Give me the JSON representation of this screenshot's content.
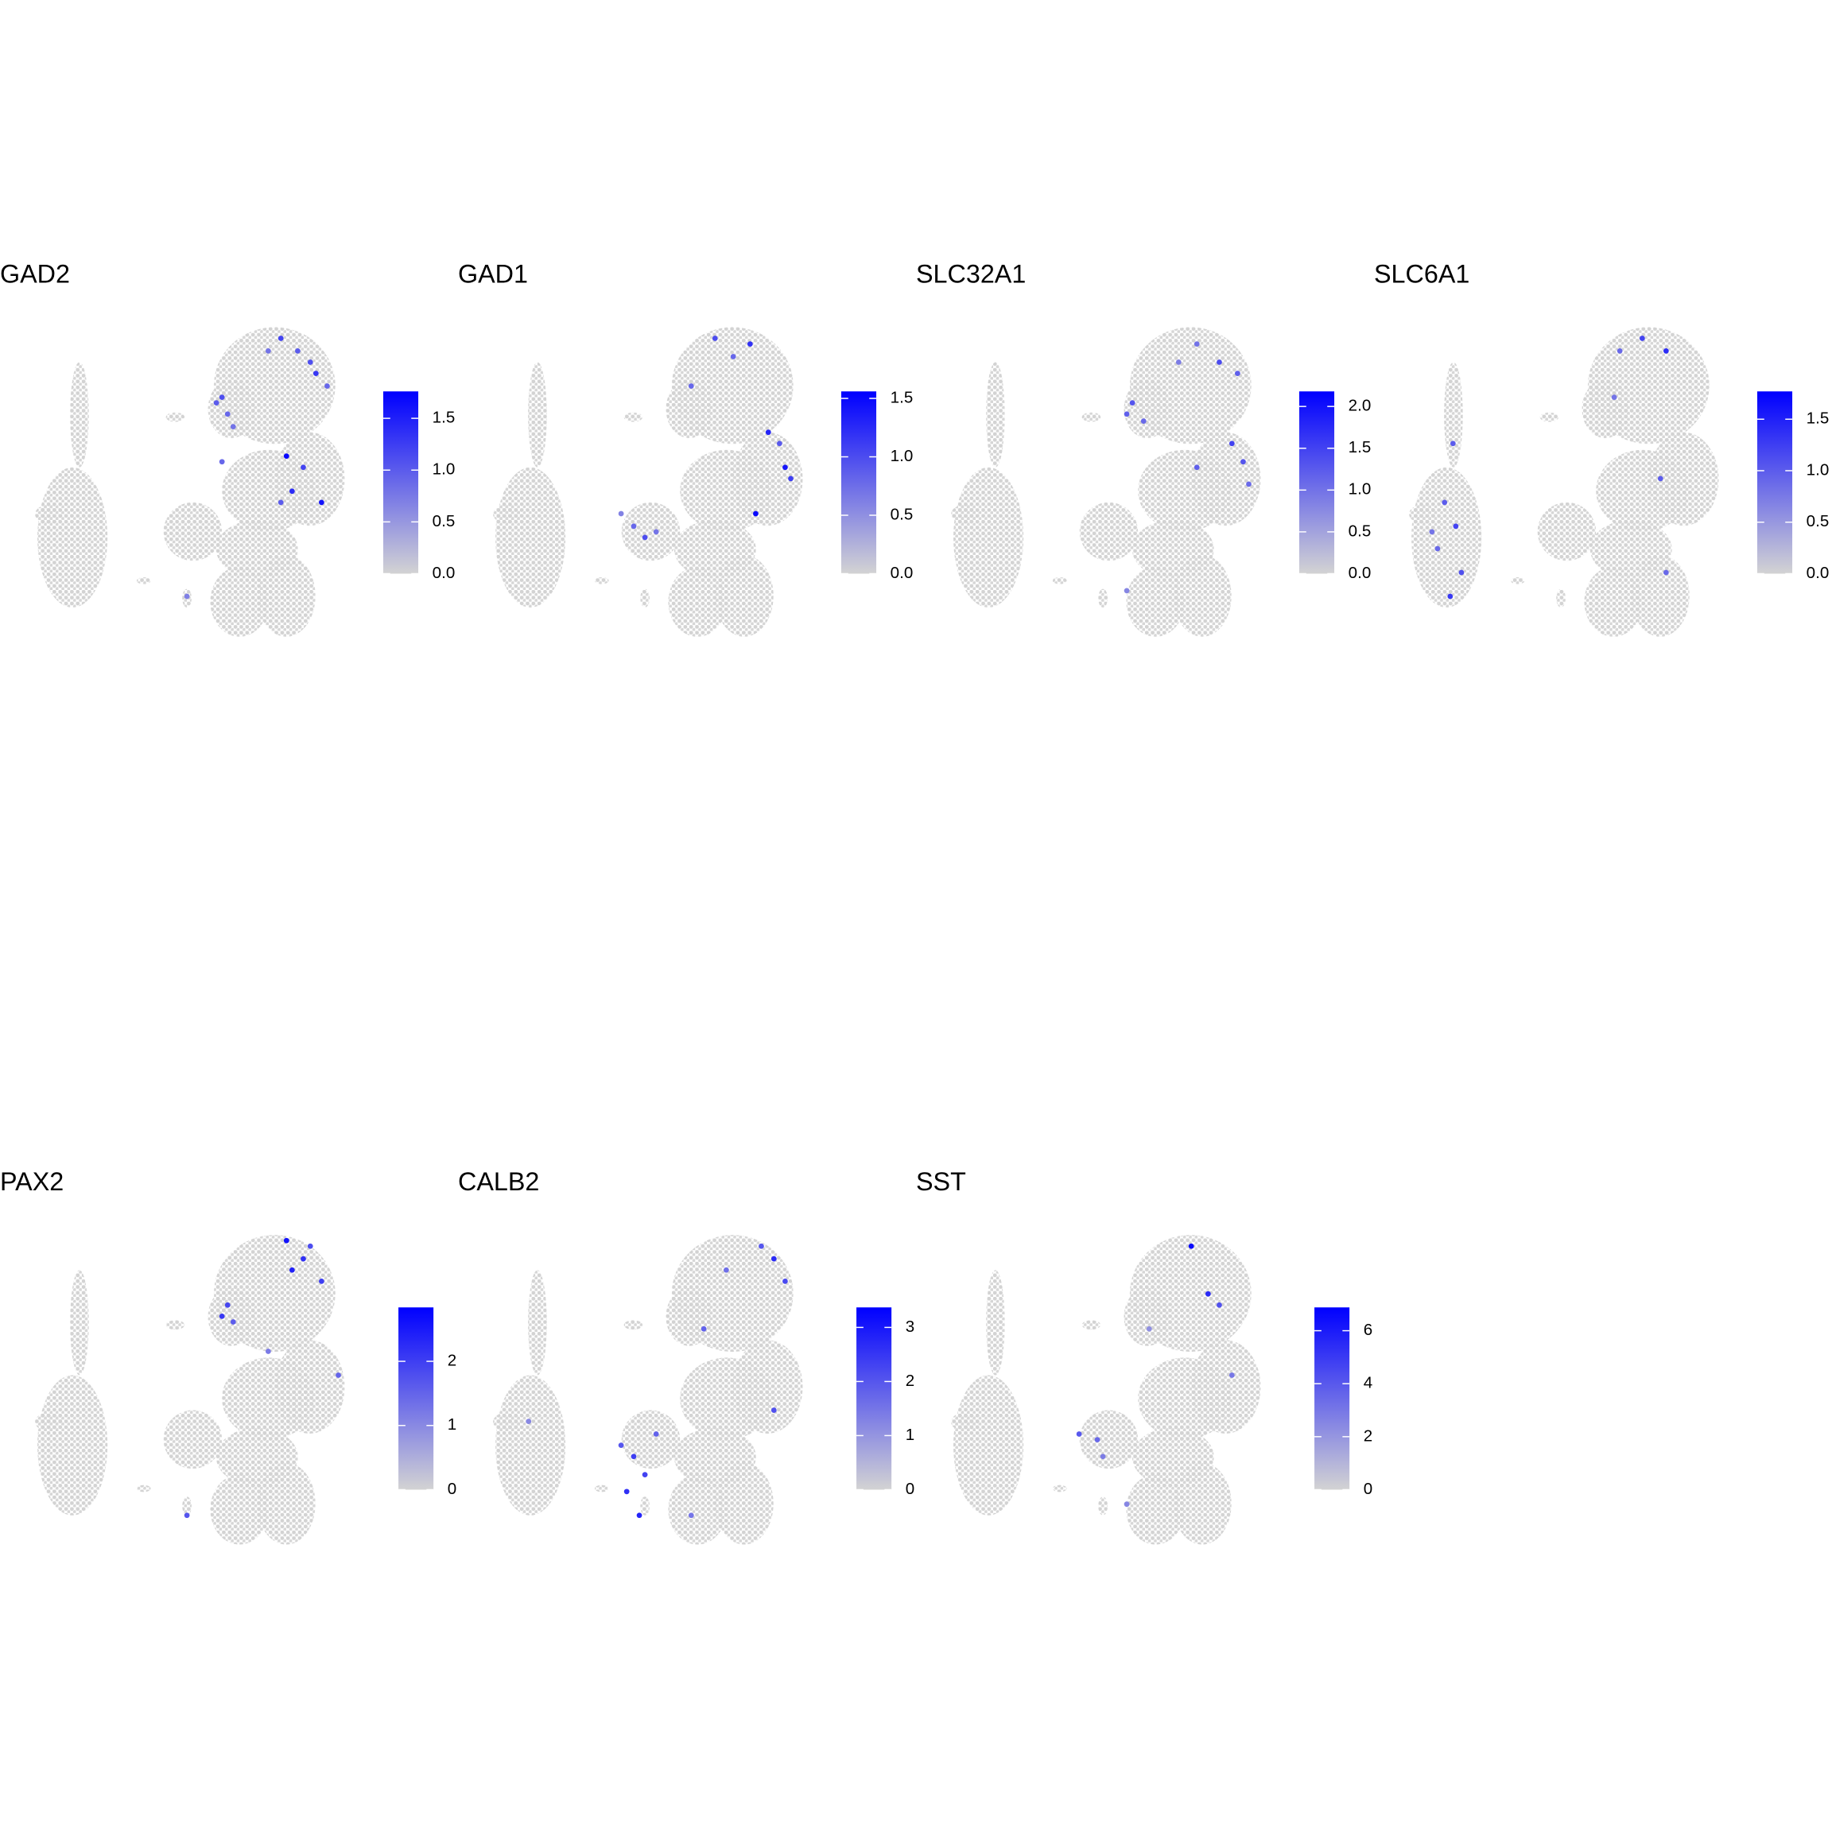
{
  "chart_data": [
    {
      "type": "scatter",
      "title": "GAD2",
      "x": [
        2.5,
        2.9,
        2.1,
        3.3,
        6.7,
        7.9,
        9.2,
        10,
        8.8,
        5.8,
        7.1,
        8.3,
        7.5,
        9.6,
        6.7,
        0,
        2.5
      ],
      "y": [
        6.0,
        4.8,
        5.6,
        3.9,
        10.2,
        9.3,
        7.7,
        6.8,
        8.5,
        9.3,
        1.8,
        1.0,
        -0.7,
        -1.5,
        -1.5,
        -8.2,
        1.4
      ],
      "values": [
        1.1,
        0.9,
        1.0,
        0.8,
        1.2,
        1.0,
        1.3,
        0.9,
        1.1,
        0.8,
        1.7,
        1.2,
        1.4,
        1.6,
        1.0,
        0.7,
        0.9
      ],
      "xlim": [
        -12,
        12
      ],
      "ylim": [
        -12,
        12
      ],
      "clim": [
        0,
        1.76
      ],
      "cticks": [
        {
          "value": 0,
          "label": "0.0"
        },
        0.5,
        {
          "value": 1,
          "label": "1.0"
        },
        1.5
      ],
      "low_color": "#d3d3d3",
      "high_color": "#0000ff"
    },
    {
      "type": "scatter",
      "title": "GAD1",
      "x": [
        5,
        7.5,
        6.3,
        10,
        10.4,
        9.6,
        -0.8,
        0,
        0.8,
        8.8,
        7.9,
        3.3,
        -1.7
      ],
      "y": [
        10.2,
        9.8,
        8.9,
        1,
        0.2,
        2.7,
        -3.2,
        -4,
        -3.6,
        3.5,
        -2.3,
        6.8,
        -2.3
      ],
      "values": [
        1.0,
        1.2,
        0.8,
        1.4,
        1.1,
        0.9,
        0.8,
        1.0,
        0.7,
        1.3,
        1.5,
        0.8,
        0.6
      ],
      "xlim": [
        -12,
        12
      ],
      "ylim": [
        -12,
        12
      ],
      "clim": [
        0,
        1.56
      ],
      "cticks": [
        {
          "value": 0,
          "label": "0.0"
        },
        0.5,
        {
          "value": 1,
          "label": "1.0"
        },
        1.5
      ],
      "low_color": "#d3d3d3",
      "high_color": "#0000ff"
    },
    {
      "type": "scatter",
      "title": "SLC32A1",
      "x": [
        2.1,
        2.9,
        1.7,
        8.3,
        9.6,
        6.7,
        5.4,
        9.2,
        10,
        10.4,
        6.7,
        1.7
      ],
      "y": [
        5.6,
        4.3,
        4.8,
        8.5,
        7.7,
        9.8,
        8.5,
        2.7,
        1.4,
        -0.2,
        1,
        -7.8
      ],
      "values": [
        1.3,
        1.1,
        1.2,
        1.4,
        1.2,
        1.0,
        0.9,
        1.5,
        1.3,
        1.1,
        1.2,
        0.8
      ],
      "xlim": [
        -12,
        12
      ],
      "ylim": [
        -12,
        12
      ],
      "clim": [
        0,
        2.18
      ],
      "cticks": [
        {
          "value": 0,
          "label": "0.0"
        },
        0.5,
        {
          "value": 1,
          "label": "1.0"
        },
        1.5,
        {
          "value": 2,
          "label": "2.0"
        }
      ],
      "low_color": "#d3d3d3",
      "high_color": "#0000ff"
    },
    {
      "type": "scatter",
      "title": "SLC6A1",
      "x": [
        -8.3,
        -7.5,
        -8.8,
        -7.1,
        -7.9,
        -9.2,
        -7.7,
        5.8,
        7.5,
        4.2,
        3.8,
        7.1,
        7.5
      ],
      "y": [
        -1.5,
        -3.2,
        -4.8,
        -6.5,
        -8.2,
        -3.6,
        2.7,
        10.2,
        9.3,
        9.3,
        6,
        0.2,
        -6.5
      ],
      "values": [
        1.0,
        1.2,
        0.9,
        1.1,
        1.3,
        0.8,
        1.0,
        1.2,
        1.4,
        0.9,
        0.8,
        1.0,
        0.9
      ],
      "xlim": [
        -12,
        12
      ],
      "ylim": [
        -12,
        12
      ],
      "clim": [
        0,
        1.77
      ],
      "cticks": [
        {
          "value": 0,
          "label": "0.0"
        },
        0.5,
        {
          "value": 1,
          "label": "1.0"
        },
        1.5
      ],
      "low_color": "#d3d3d3",
      "high_color": "#0000ff"
    },
    {
      "type": "scatter",
      "title": "PAX2",
      "x": [
        7.1,
        8.3,
        9.6,
        8.8,
        7.5,
        2.9,
        3.3,
        2.5,
        10.8,
        0,
        5.8
      ],
      "y": [
        10.6,
        9.3,
        7.7,
        10.2,
        8.5,
        6,
        4.8,
        5.2,
        1,
        -9,
        2.7
      ],
      "values": [
        2.6,
        2.2,
        2.0,
        1.8,
        2.4,
        1.9,
        1.6,
        2.1,
        1.5,
        1.7,
        1.2
      ],
      "xlim": [
        -12,
        12
      ],
      "ylim": [
        -12,
        12
      ],
      "clim": [
        0,
        2.84
      ],
      "cticks": [
        0,
        1,
        2
      ],
      "low_color": "#d3d3d3",
      "high_color": "#0000ff"
    },
    {
      "type": "scatter",
      "title": "CALB2",
      "x": [
        -0.8,
        -1.3,
        -0.4,
        -1.7,
        0,
        0.8,
        9.2,
        10,
        8.3,
        5.8,
        4.2,
        9.2,
        3.3,
        -8.3
      ],
      "y": [
        -4.8,
        -7.3,
        -9,
        -4,
        -6.1,
        -3.2,
        9.3,
        7.7,
        10.2,
        8.5,
        4.3,
        -1.5,
        -9,
        -2.3
      ],
      "values": [
        2.4,
        2.6,
        2.8,
        2.0,
        2.3,
        1.8,
        2.7,
        2.2,
        2.0,
        1.6,
        1.8,
        2.1,
        1.5,
        1.2
      ],
      "xlim": [
        -12,
        12
      ],
      "ylim": [
        -12,
        12
      ],
      "clim": [
        0,
        3.37
      ],
      "cticks": [
        0,
        1,
        2,
        3
      ],
      "low_color": "#d3d3d3",
      "high_color": "#0000ff"
    },
    {
      "type": "scatter",
      "title": "SST",
      "x": [
        7.5,
        8.3,
        6.3,
        -1.7,
        1.7,
        0,
        9.2,
        3.3,
        -0.4
      ],
      "y": [
        6.8,
        6,
        10.2,
        -3.2,
        -8.2,
        -4.8,
        1,
        4.3,
        -3.6
      ],
      "values": [
        5.5,
        4.2,
        6.5,
        4.0,
        2.5,
        2.8,
        3.0,
        2.2,
        3.5
      ],
      "xlim": [
        -12,
        12
      ],
      "ylim": [
        -12,
        12
      ],
      "clim": [
        0,
        6.88
      ],
      "cticks": [
        0,
        2,
        4,
        6
      ],
      "low_color": "#d3d3d3",
      "high_color": "#0000ff"
    }
  ]
}
